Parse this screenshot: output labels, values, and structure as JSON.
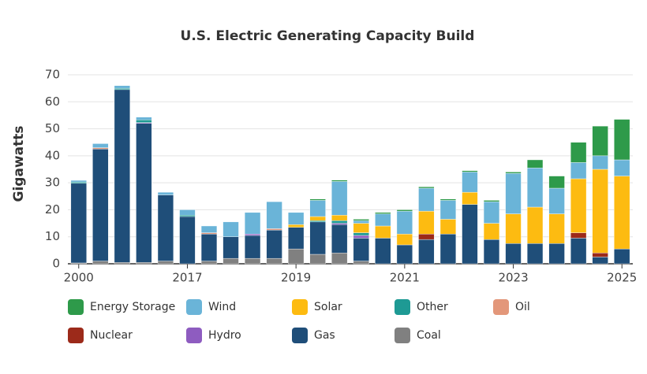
{
  "chart_data": {
    "type": "bar",
    "stacked": true,
    "title": "U.S. Electric Generating Capacity Build",
    "y_label": "Gigawatts",
    "categories": [
      "2000",
      null,
      null,
      null,
      null,
      "2017",
      null,
      null,
      null,
      null,
      "2019",
      null,
      null,
      null,
      null,
      "2021",
      null,
      null,
      null,
      null,
      "2023",
      null,
      null,
      null,
      null,
      "2025"
    ],
    "series": [
      {
        "name": "Energy Storage",
        "color": "#2e9a4a",
        "values": [
          0,
          0,
          0,
          0,
          0,
          0,
          0,
          0,
          0,
          0,
          0,
          0.5,
          0.5,
          0.5,
          0.5,
          0.5,
          0.5,
          0.5,
          0.5,
          0.5,
          0.5,
          3,
          4.5,
          7.5,
          11,
          15
        ]
      },
      {
        "name": "Wind",
        "color": "#6ab4d8",
        "values": [
          0.6,
          1.5,
          1,
          1,
          1,
          2,
          2.5,
          5.5,
          8,
          10,
          4.5,
          6,
          12.5,
          1,
          4.5,
          8.5,
          8.5,
          7,
          7.5,
          8,
          15,
          14.5,
          9.5,
          6,
          5,
          6
        ]
      },
      {
        "name": "Solar",
        "color": "#fdbb11",
        "values": [
          0,
          0,
          0,
          0,
          0,
          0,
          0,
          0,
          0,
          0,
          1,
          1.5,
          2,
          3.5,
          4.5,
          4,
          8.5,
          5.5,
          4.5,
          6,
          11,
          13.5,
          11,
          20,
          31,
          27
        ]
      },
      {
        "name": "Other",
        "color": "#1e9a94",
        "values": [
          0.5,
          0,
          0.5,
          1,
          0,
          0.5,
          0,
          0,
          0,
          0,
          0,
          0.5,
          1,
          1,
          0,
          0,
          0,
          0,
          0,
          0,
          0,
          0,
          0,
          0,
          0,
          0
        ]
      },
      {
        "name": "Oil",
        "color": "#e3977a",
        "values": [
          0,
          0.5,
          0,
          0,
          0,
          0,
          0.5,
          0,
          0,
          0.5,
          0,
          0,
          0,
          0,
          0,
          0,
          0,
          0,
          0,
          0,
          0,
          0,
          0,
          0,
          0,
          0
        ]
      },
      {
        "name": "Nuclear",
        "color": "#9c2a1a",
        "values": [
          0,
          0,
          0,
          0,
          0,
          0,
          0,
          0,
          0,
          0,
          0,
          0,
          0,
          0,
          0,
          0,
          2,
          0,
          0,
          0,
          0,
          0,
          0,
          2,
          1.5,
          0
        ]
      },
      {
        "name": "Hydro",
        "color": "#8e5cc0",
        "values": [
          0,
          0,
          0,
          0.3,
          0,
          0,
          0,
          0,
          0.5,
          0,
          0,
          0,
          0.5,
          1,
          0,
          0,
          0,
          0,
          0,
          0,
          0,
          0,
          0,
          0,
          0,
          0
        ]
      },
      {
        "name": "Gas",
        "color": "#1f4e79",
        "values": [
          29.5,
          41.5,
          64,
          51.5,
          24.5,
          17.5,
          10,
          8,
          8.5,
          10.5,
          8,
          12,
          10.5,
          8.5,
          9.5,
          7,
          9,
          11,
          22,
          9,
          7.5,
          7.5,
          7.5,
          9.5,
          2.5,
          5.5
        ]
      },
      {
        "name": "Coal",
        "color": "#808080",
        "values": [
          0.3,
          1,
          0.5,
          0.5,
          1,
          0,
          1,
          2,
          2,
          2,
          5.5,
          3.5,
          4,
          1,
          0,
          0,
          0,
          0,
          0,
          0,
          0,
          0,
          0,
          0,
          0,
          0
        ]
      }
    ],
    "ylim": [
      0,
      70
    ],
    "yticks": [
      0,
      10,
      20,
      30,
      40,
      50,
      60,
      70
    ],
    "grid": true
  }
}
